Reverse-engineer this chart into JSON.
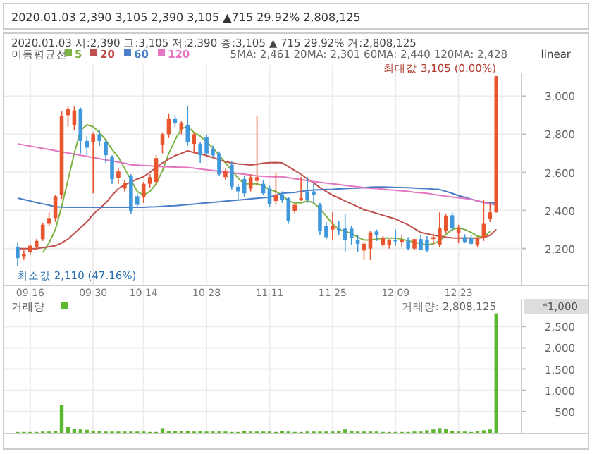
{
  "chart_data": [
    {
      "type": "candlestick",
      "title": "2020.01.03  2,390  3,105  2,390  3,105 ▲715 29.92%  2,808,125",
      "subtitle": "2020.01.03 시:2,390 고:3,105 저:2,390 종:3,105 ▲ 715 29.92% 거:2,808,125",
      "legend_title": "이동평균선",
      "legend": "top left",
      "grid": true,
      "categories": [
        null,
        null,
        "09.16",
        null,
        null,
        null,
        null,
        null,
        null,
        null,
        null,
        null,
        "09.30",
        null,
        null,
        null,
        null,
        null,
        null,
        null,
        "10.14",
        null,
        null,
        null,
        null,
        null,
        null,
        null,
        null,
        null,
        "10.28",
        null,
        null,
        null,
        null,
        null,
        null,
        null,
        null,
        null,
        "11.11",
        null,
        null,
        null,
        null,
        null,
        null,
        null,
        null,
        null,
        "11.25",
        null,
        null,
        null,
        null,
        null,
        null,
        null,
        null,
        null,
        "12.09",
        null,
        null,
        null,
        null,
        null,
        null,
        null,
        null,
        null,
        "12.23",
        null,
        null,
        null,
        null,
        null,
        null
      ],
      "ohlc": [
        [
          2210,
          2230,
          2110,
          2150
        ],
        [
          2160,
          2190,
          2140,
          2170
        ],
        [
          2180,
          2225,
          2165,
          2215
        ],
        [
          2210,
          2250,
          2195,
          2240
        ],
        [
          2250,
          2335,
          2240,
          2325
        ],
        [
          2330,
          2390,
          2320,
          2360
        ],
        [
          2360,
          2480,
          2340,
          2475
        ],
        [
          2480,
          2920,
          2460,
          2895
        ],
        [
          2900,
          2950,
          2840,
          2935
        ],
        [
          2850,
          2945,
          2820,
          2925
        ],
        [
          2935,
          2940,
          2700,
          2765
        ],
        [
          2765,
          2790,
          2690,
          2730
        ],
        [
          2760,
          2810,
          2490,
          2800
        ],
        [
          2800,
          2820,
          2740,
          2765
        ],
        [
          2760,
          2770,
          2650,
          2690
        ],
        [
          2680,
          2690,
          2540,
          2565
        ],
        [
          2570,
          2625,
          2540,
          2605
        ],
        [
          2515,
          2560,
          2500,
          2545
        ],
        [
          2580,
          2590,
          2380,
          2395
        ],
        [
          2475,
          2490,
          2420,
          2430
        ],
        [
          2470,
          2550,
          2440,
          2540
        ],
        [
          2540,
          2590,
          2520,
          2575
        ],
        [
          2550,
          2690,
          2530,
          2675
        ],
        [
          2745,
          2810,
          2700,
          2800
        ],
        [
          2800,
          2910,
          2780,
          2880
        ],
        [
          2880,
          2900,
          2840,
          2860
        ],
        [
          2825,
          2870,
          2800,
          2860
        ],
        [
          2850,
          2950,
          2740,
          2760
        ],
        [
          2750,
          2810,
          2700,
          2800
        ],
        [
          2750,
          2760,
          2650,
          2690
        ],
        [
          2785,
          2800,
          2690,
          2700
        ],
        [
          2725,
          2740,
          2680,
          2690
        ],
        [
          2700,
          2710,
          2580,
          2590
        ],
        [
          2575,
          2620,
          2560,
          2605
        ],
        [
          2640,
          2660,
          2510,
          2525
        ],
        [
          2525,
          2540,
          2460,
          2500
        ],
        [
          2565,
          2580,
          2470,
          2490
        ],
        [
          2515,
          2590,
          2500,
          2575
        ],
        [
          2555,
          2895,
          2530,
          2575
        ],
        [
          2540,
          2560,
          2480,
          2490
        ],
        [
          2515,
          2530,
          2420,
          2435
        ],
        [
          2450,
          2600,
          2430,
          2480
        ],
        [
          2480,
          2500,
          2440,
          2455
        ],
        [
          2465,
          2470,
          2330,
          2345
        ],
        [
          2395,
          2440,
          2380,
          2430
        ],
        [
          2455,
          2575,
          2450,
          2465
        ],
        [
          2500,
          2575,
          2440,
          2455
        ],
        [
          2500,
          2545,
          2440,
          2480
        ],
        [
          2430,
          2440,
          2270,
          2295
        ],
        [
          2320,
          2340,
          2250,
          2260
        ],
        [
          2300,
          2390,
          2245,
          2320
        ],
        [
          2305,
          2345,
          2270,
          2300
        ],
        [
          2305,
          2380,
          2180,
          2245
        ],
        [
          2305,
          2320,
          2220,
          2255
        ],
        [
          2245,
          2270,
          2180,
          2225
        ],
        [
          2190,
          2235,
          2140,
          2225
        ],
        [
          2200,
          2295,
          2140,
          2285
        ],
        [
          2290,
          2300,
          2240,
          2270
        ],
        [
          2220,
          2265,
          2210,
          2255
        ],
        [
          2220,
          2250,
          2200,
          2245
        ],
        [
          2245,
          2300,
          2215,
          2240
        ],
        [
          2235,
          2270,
          2210,
          2245
        ],
        [
          2240,
          2260,
          2190,
          2200
        ],
        [
          2200,
          2250,
          2190,
          2250
        ],
        [
          2250,
          2275,
          2190,
          2195
        ],
        [
          2245,
          2265,
          2180,
          2190
        ],
        [
          2250,
          2280,
          2220,
          2260
        ],
        [
          2220,
          2390,
          2210,
          2310
        ],
        [
          2295,
          2380,
          2280,
          2370
        ],
        [
          2375,
          2390,
          2290,
          2305
        ],
        [
          2280,
          2325,
          2230,
          2310
        ],
        [
          2260,
          2275,
          2230,
          2235
        ],
        [
          2255,
          2270,
          2220,
          2225
        ],
        [
          2220,
          2260,
          2210,
          2255
        ],
        [
          2255,
          2455,
          2240,
          2330
        ],
        [
          2355,
          2440,
          2340,
          2390
        ],
        [
          2390,
          3105,
          2390,
          3105
        ]
      ],
      "series": [
        {
          "name": "5",
          "type": "line",
          "color": "#7cb342",
          "values": [
            null,
            null,
            null,
            null,
            2180,
            2230,
            2300,
            2420,
            2560,
            2700,
            2820,
            2850,
            2840,
            2810,
            2770,
            2720,
            2680,
            2620,
            2560,
            2500,
            2480,
            2500,
            2540,
            2610,
            2700,
            2770,
            2830,
            2840,
            2810,
            2790,
            2760,
            2730,
            2690,
            2650,
            2610,
            2570,
            2540,
            2540,
            2540,
            2530,
            2510,
            2500,
            2480,
            2450,
            2440,
            2440,
            2450,
            2440,
            2410,
            2370,
            2330,
            2300,
            2290,
            2280,
            2260,
            2245,
            2245,
            2250,
            2255,
            2255,
            2255,
            2250,
            2240,
            2235,
            2225,
            2220,
            2225,
            2240,
            2275,
            2300,
            2310,
            2300,
            2285,
            2265,
            2260,
            2290,
            null
          ]
        },
        {
          "name": "20",
          "type": "line",
          "color": "#c0504d",
          "values": [
            2200,
            2200,
            2200,
            2200,
            2205,
            2210,
            2215,
            2230,
            2250,
            2280,
            2310,
            2340,
            2380,
            2410,
            2440,
            2480,
            2515,
            2535,
            2550,
            2565,
            2577,
            2600,
            2626,
            2650,
            2670,
            2688,
            2700,
            2713,
            2705,
            2698,
            2688,
            2678,
            2667,
            2656,
            2650,
            2645,
            2642,
            2639,
            2643,
            2648,
            2651,
            2652,
            2650,
            2630,
            2610,
            2590,
            2565,
            2545,
            2520,
            2500,
            2480,
            2466,
            2450,
            2435,
            2420,
            2404,
            2395,
            2385,
            2375,
            2365,
            2355,
            2340,
            2325,
            2305,
            2285,
            2278,
            2270,
            2265,
            2260,
            2256,
            2255,
            2255,
            2255,
            2255,
            2258,
            2270,
            2301
          ]
        },
        {
          "name": "60",
          "type": "line",
          "color": "#4a7fc8",
          "values": [
            2465,
            2458,
            2450,
            2442,
            2435,
            2428,
            2420,
            2418,
            2417,
            2417,
            2417,
            2417,
            2417,
            2417,
            2417,
            2417,
            2417,
            2417,
            2417,
            2417,
            2417,
            2419,
            2420,
            2422,
            2424,
            2425,
            2428,
            2431,
            2434,
            2437,
            2440,
            2443,
            2446,
            2449,
            2452,
            2455,
            2458,
            2461,
            2464,
            2467,
            2470,
            2480,
            2490,
            2493,
            2495,
            2500,
            2505,
            2508,
            2509,
            2510,
            2511,
            2513,
            2515,
            2517,
            2518,
            2520,
            2522,
            2523,
            2523,
            2522,
            2521,
            2521,
            2520,
            2518,
            2516,
            2515,
            2512,
            2510,
            2500,
            2490,
            2478,
            2470,
            2460,
            2450,
            2441,
            2440,
            2440
          ]
        },
        {
          "name": "120",
          "type": "line",
          "color": "#e377c2",
          "values": [
            2750,
            2744,
            2738,
            2732,
            2726,
            2720,
            2714,
            2708,
            2702,
            2696,
            2690,
            2684,
            2678,
            2672,
            2666,
            2660,
            2654,
            2648,
            2640,
            2638,
            2636,
            2634,
            2632,
            2630,
            2629,
            2628,
            2627,
            2626,
            2622,
            2618,
            2614,
            2610,
            2606,
            2602,
            2598,
            2594,
            2590,
            2586,
            2582,
            2580,
            2578,
            2577,
            2577,
            2572,
            2567,
            2562,
            2557,
            2552,
            2548,
            2544,
            2540,
            2536,
            2532,
            2528,
            2524,
            2520,
            2517,
            2515,
            2512,
            2509,
            2506,
            2503,
            2500,
            2496,
            2493,
            2490,
            2485,
            2480,
            2475,
            2471,
            2467,
            2463,
            2459,
            2451,
            2443,
            2435,
            2428
          ]
        }
      ],
      "ylim": [
        2010,
        3120
      ],
      "yticks": [
        {
          "value": 2200,
          "label": "2,200"
        },
        {
          "value": 2400,
          "label": "2,400"
        },
        {
          "value": 2600,
          "label": "2,600"
        },
        {
          "value": 2800,
          "label": "2,800"
        },
        {
          "value": 3000,
          "label": "3,000"
        }
      ],
      "annotations": [
        "5MA: 2,461 20MA: 2,301 60MA: 2,440 120MA: 2,428",
        "linear",
        "최대값 3,105 (0.00%)",
        "최소값 2,110 (47.16%)"
      ]
    },
    {
      "type": "bar",
      "legend": "top left",
      "grid": true,
      "tick_labels": "y",
      "categories": [
        null,
        null,
        "09.16",
        null,
        null,
        null,
        null,
        null,
        null,
        null,
        null,
        null,
        "09.30",
        null,
        null,
        null,
        null,
        null,
        null,
        null,
        "10.14",
        null,
        null,
        null,
        null,
        null,
        null,
        null,
        null,
        null,
        "10.28",
        null,
        null,
        null,
        null,
        null,
        null,
        null,
        null,
        null,
        "11.11",
        null,
        null,
        null,
        null,
        null,
        null,
        null,
        null,
        null,
        "11.25",
        null,
        null,
        null,
        null,
        null,
        null,
        null,
        null,
        null,
        "12.09",
        null,
        null,
        null,
        null,
        null,
        null,
        null,
        null,
        null,
        "12.23",
        null,
        null,
        null,
        null,
        null,
        null
      ],
      "series": [
        {
          "name": "거래량",
          "color": "#5cb82e",
          "values": [
            20,
            20,
            20,
            20,
            30,
            30,
            40,
            650,
            140,
            100,
            80,
            70,
            50,
            40,
            30,
            30,
            30,
            30,
            30,
            30,
            30,
            20,
            20,
            110,
            50,
            40,
            40,
            40,
            30,
            40,
            30,
            30,
            30,
            30,
            20,
            20,
            50,
            30,
            30,
            30,
            30,
            20,
            40,
            30,
            20,
            20,
            30,
            30,
            30,
            30,
            30,
            40,
            80,
            50,
            30,
            30,
            30,
            30,
            20,
            20,
            20,
            20,
            20,
            30,
            30,
            60,
            80,
            110,
            100,
            40,
            30,
            30,
            20,
            40,
            60,
            80,
            2808
          ]
        }
      ],
      "ylim": [
        0,
        3150
      ],
      "yticks": [
        {
          "value": 500,
          "label": "500"
        },
        {
          "value": 1000,
          "label": "1,000"
        },
        {
          "value": 1500,
          "label": "1,500"
        },
        {
          "value": 2000,
          "label": "2,000"
        },
        {
          "value": 2500,
          "label": "2,500"
        }
      ],
      "annotations": [
        "거래량: 2,808,125",
        "*1,000"
      ]
    }
  ]
}
